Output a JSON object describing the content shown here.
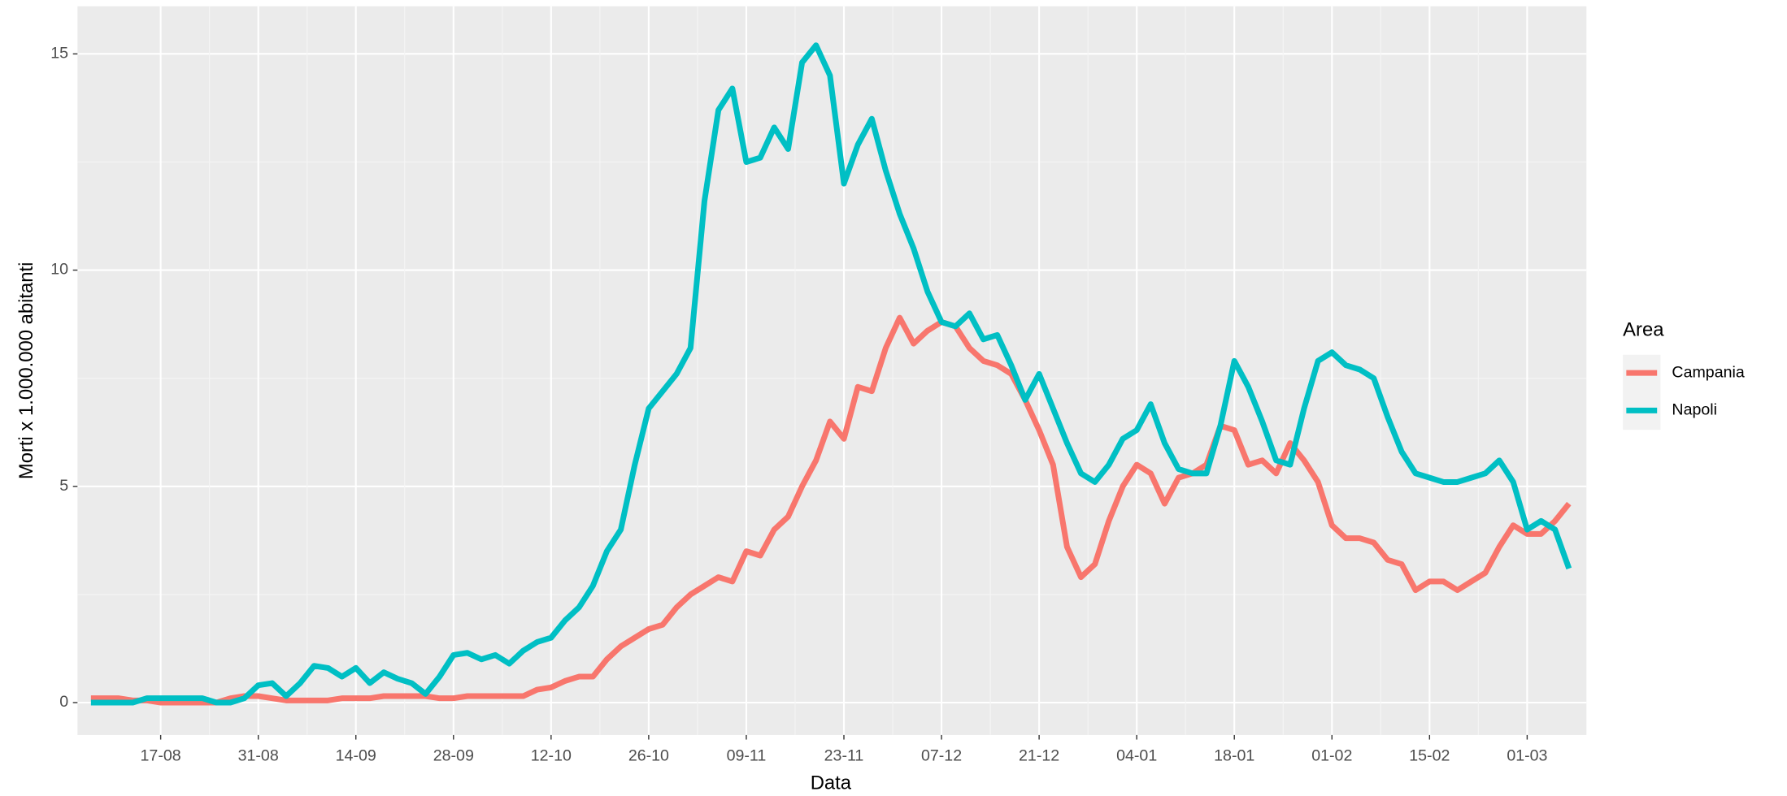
{
  "chart_data": {
    "type": "line",
    "x_label": "Data",
    "y_label": "Morti x 1.000.000 abitanti",
    "legend_title": "Area",
    "legend_position": "right",
    "grid": true,
    "categories": [
      "07-08",
      "09-08",
      "11-08",
      "13-08",
      "15-08",
      "17-08",
      "19-08",
      "21-08",
      "23-08",
      "25-08",
      "27-08",
      "29-08",
      "31-08",
      "02-09",
      "04-09",
      "06-09",
      "08-09",
      "10-09",
      "12-09",
      "14-09",
      "16-09",
      "18-09",
      "20-09",
      "22-09",
      "24-09",
      "26-09",
      "28-09",
      "30-09",
      "02-10",
      "04-10",
      "06-10",
      "08-10",
      "10-10",
      "12-10",
      "14-10",
      "16-10",
      "18-10",
      "20-10",
      "22-10",
      "24-10",
      "26-10",
      "28-10",
      "30-10",
      "01-11",
      "03-11",
      "05-11",
      "07-11",
      "09-11",
      "11-11",
      "13-11",
      "15-11",
      "17-11",
      "19-11",
      "21-11",
      "23-11",
      "25-11",
      "27-11",
      "29-11",
      "01-12",
      "03-12",
      "05-12",
      "07-12",
      "09-12",
      "11-12",
      "13-12",
      "15-12",
      "17-12",
      "19-12",
      "21-12",
      "23-12",
      "25-12",
      "27-12",
      "29-12",
      "31-12",
      "02-01",
      "04-01",
      "06-01",
      "08-01",
      "10-01",
      "12-01",
      "14-01",
      "16-01",
      "18-01",
      "20-01",
      "22-01",
      "24-01",
      "26-01",
      "28-01",
      "30-01",
      "01-02",
      "03-02",
      "05-02",
      "07-02",
      "09-02",
      "11-02",
      "13-02",
      "15-02",
      "17-02",
      "19-02",
      "21-02",
      "23-02",
      "25-02",
      "27-02",
      "01-03",
      "03-03",
      "05-03",
      "07-03"
    ],
    "xticks": [
      "17-08",
      "31-08",
      "14-09",
      "28-09",
      "12-10",
      "26-10",
      "09-11",
      "23-11",
      "07-12",
      "21-12",
      "04-01",
      "18-01",
      "01-02",
      "15-02",
      "01-03"
    ],
    "ylim": [
      -0.75,
      16.1
    ],
    "yticks": [
      0,
      5,
      10,
      15
    ],
    "series": [
      {
        "name": "Campania",
        "color": "#f8766d",
        "values": [
          0.1,
          0.1,
          0.1,
          0.05,
          0.05,
          0,
          0,
          0,
          0,
          0,
          0.1,
          0.15,
          0.15,
          0.1,
          0.05,
          0.05,
          0.05,
          0.05,
          0.1,
          0.1,
          0.1,
          0.15,
          0.15,
          0.15,
          0.15,
          0.1,
          0.1,
          0.15,
          0.15,
          0.15,
          0.15,
          0.15,
          0.3,
          0.35,
          0.5,
          0.6,
          0.6,
          1.0,
          1.3,
          1.5,
          1.7,
          1.8,
          2.2,
          2.5,
          2.7,
          2.9,
          2.8,
          3.5,
          3.4,
          4.0,
          4.3,
          5.0,
          5.6,
          6.5,
          6.1,
          7.3,
          7.2,
          8.2,
          8.9,
          8.3,
          8.6,
          8.8,
          8.7,
          8.2,
          7.9,
          7.8,
          7.6,
          7.0,
          6.3,
          5.5,
          3.6,
          2.9,
          3.2,
          4.2,
          5.0,
          5.5,
          5.3,
          4.6,
          5.2,
          5.3,
          5.5,
          6.4,
          6.3,
          5.5,
          5.6,
          5.3,
          6.0,
          5.6,
          5.1,
          4.1,
          3.8,
          3.8,
          3.7,
          3.3,
          3.2,
          2.6,
          2.8,
          2.8,
          2.6,
          2.8,
          3.0,
          3.6,
          4.1,
          3.9,
          3.9,
          4.2,
          4.6
        ]
      },
      {
        "name": "Napoli",
        "color": "#00bfc4",
        "values": [
          0,
          0,
          0,
          0,
          0.1,
          0.1,
          0.1,
          0.1,
          0.1,
          0,
          0,
          0.1,
          0.4,
          0.45,
          0.15,
          0.45,
          0.85,
          0.8,
          0.6,
          0.8,
          0.45,
          0.7,
          0.55,
          0.45,
          0.2,
          0.6,
          1.1,
          1.15,
          1.0,
          1.1,
          0.9,
          1.2,
          1.4,
          1.5,
          1.9,
          2.2,
          2.7,
          3.5,
          4.0,
          5.5,
          6.8,
          7.2,
          7.6,
          8.2,
          11.6,
          13.7,
          14.2,
          12.5,
          12.6,
          13.3,
          12.8,
          14.8,
          15.2,
          14.5,
          12.0,
          12.9,
          13.5,
          12.3,
          11.3,
          10.5,
          9.5,
          8.8,
          8.7,
          9.0,
          8.4,
          8.5,
          7.8,
          7.0,
          7.6,
          6.8,
          6.0,
          5.3,
          5.1,
          5.5,
          6.1,
          6.3,
          6.9,
          6.0,
          5.4,
          5.3,
          5.3,
          6.4,
          7.9,
          7.3,
          6.5,
          5.6,
          5.5,
          6.8,
          7.9,
          8.1,
          7.8,
          7.7,
          7.5,
          6.6,
          5.8,
          5.3,
          5.2,
          5.1,
          5.1,
          5.2,
          5.3,
          5.6,
          5.1,
          4.0,
          4.2,
          4.0,
          3.1
        ]
      }
    ]
  }
}
